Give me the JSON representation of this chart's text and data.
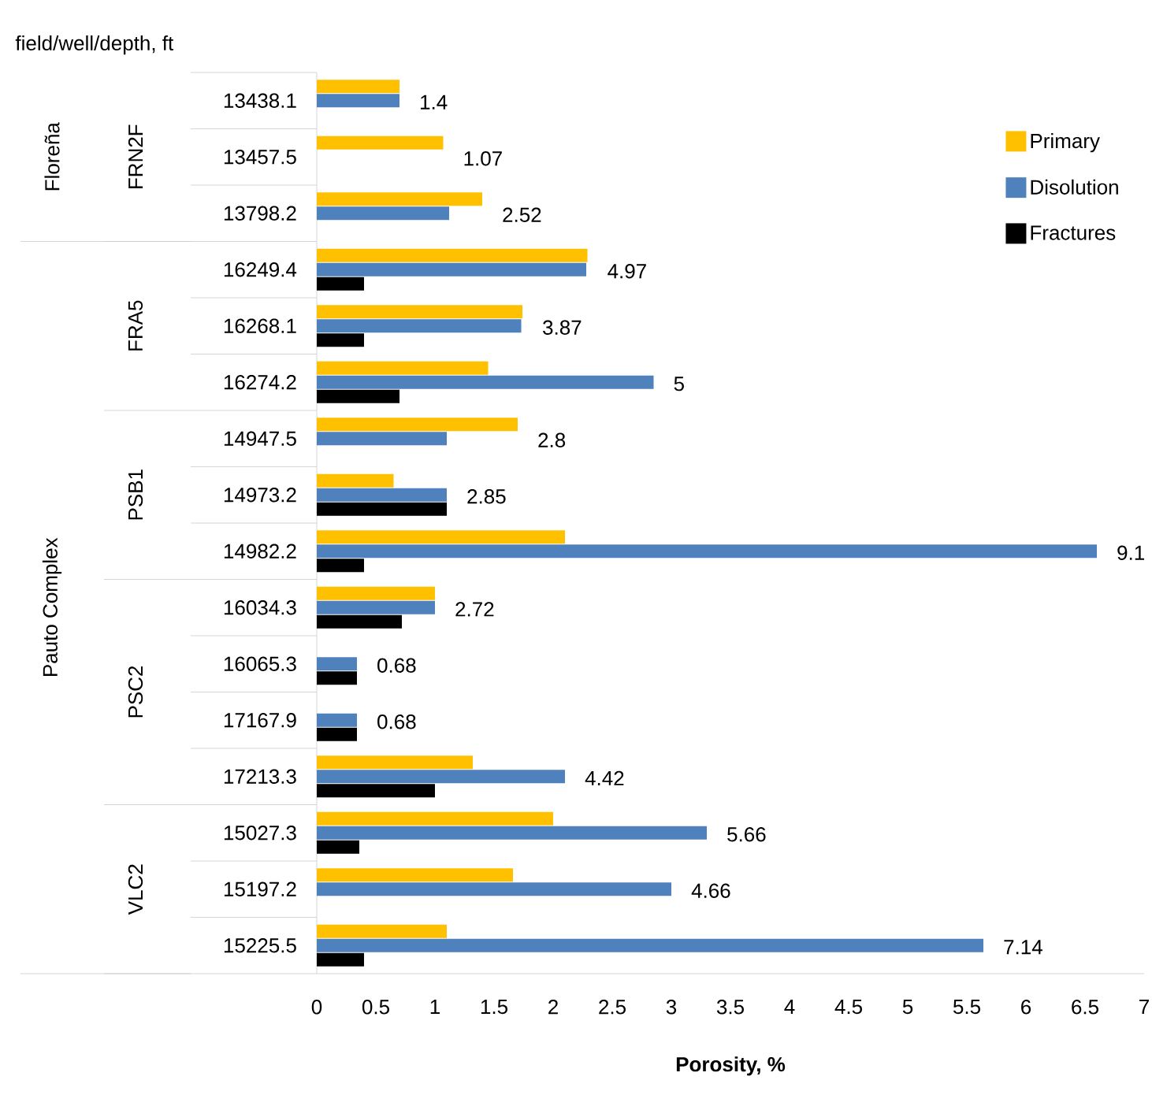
{
  "chart_data": {
    "type": "bar",
    "orientation": "horizontal",
    "ylabel": "field/well/depth, ft",
    "xlabel": "Porosity, %",
    "categories": [
      "13438.1",
      "13457.5",
      "13798.2",
      "16249.4",
      "16268.1",
      "16274.2",
      "14947.5",
      "14973.2",
      "14982.2",
      "16034.3",
      "16065.3",
      "17167.9",
      "17213.3",
      "15027.3",
      "15197.2",
      "15225.5"
    ],
    "series": [
      {
        "name": "Primary",
        "color": "#ffc000",
        "values": [
          0.7,
          1.07,
          1.4,
          2.29,
          1.74,
          1.45,
          1.7,
          0.65,
          2.1,
          1.0,
          0,
          0,
          1.32,
          2.0,
          1.66,
          1.1
        ]
      },
      {
        "name": "Disolution",
        "color": "#4f81bd",
        "values": [
          0.7,
          0,
          1.12,
          2.28,
          1.73,
          2.85,
          1.1,
          1.1,
          6.6,
          1.0,
          0.34,
          0.34,
          2.1,
          3.3,
          3.0,
          5.64
        ]
      },
      {
        "name": "Fractures",
        "color": "#000000",
        "values": [
          0,
          0,
          0,
          0.4,
          0.4,
          0.7,
          0,
          1.1,
          0.4,
          0.72,
          0.34,
          0.34,
          1.0,
          0.36,
          0,
          0.4
        ]
      }
    ],
    "xlim": [
      0,
      7
    ],
    "xticks": [
      0,
      0.5,
      1,
      1.5,
      2,
      2.5,
      3,
      3.5,
      4,
      4.5,
      5,
      5.5,
      6,
      6.5,
      7
    ],
    "legend": "top right",
    "grid": false,
    "annotations": [
      {
        "text": "1.4",
        "x": 0.7,
        "y": "13438.1"
      },
      {
        "text": "1.07",
        "x": 1.07,
        "y": "13457.5"
      },
      {
        "text": "2.52",
        "x": 1.4,
        "y": "13798.2"
      },
      {
        "text": "4.97",
        "x": 2.29,
        "y": "16249.4"
      },
      {
        "text": "3.87",
        "x": 1.74,
        "y": "16268.1"
      },
      {
        "text": "5",
        "x": 2.85,
        "y": "16274.2"
      },
      {
        "text": "2.8",
        "x": 1.7,
        "y": "14947.5"
      },
      {
        "text": "2.85",
        "x": 1.1,
        "y": "14973.2"
      },
      {
        "text": "9.1",
        "x": 6.6,
        "y": "14982.2"
      },
      {
        "text": "2.72",
        "x": 1.0,
        "y": "16034.3"
      },
      {
        "text": "0.68",
        "x": 0.34,
        "y": "16065.3"
      },
      {
        "text": "0.68",
        "x": 0.34,
        "y": "17167.9"
      },
      {
        "text": "4.42",
        "x": 2.1,
        "y": "17213.3"
      },
      {
        "text": "5.66",
        "x": 3.3,
        "y": "15027.3"
      },
      {
        "text": "4.66",
        "x": 3.0,
        "y": "15197.2"
      },
      {
        "text": "7.14",
        "x": 5.64,
        "y": "15225.5"
      },
      "Floreña",
      "FRN2F",
      "Pauto Complex",
      "FRA5",
      "PSB1",
      "PSC2",
      "VLC2"
    ]
  }
}
